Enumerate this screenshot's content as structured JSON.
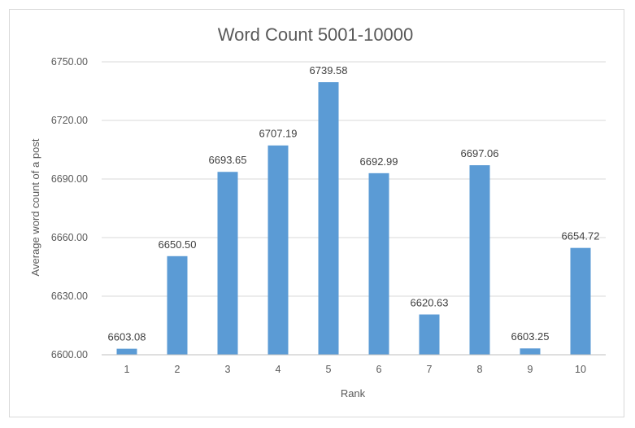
{
  "chart_data": {
    "type": "bar",
    "title": "Word Count 5001-10000",
    "xlabel": "Rank",
    "ylabel": "Average word count of a post",
    "categories": [
      "1",
      "2",
      "3",
      "4",
      "5",
      "6",
      "7",
      "8",
      "9",
      "10"
    ],
    "values": [
      6603.08,
      6650.5,
      6693.65,
      6707.19,
      6739.58,
      6692.99,
      6620.63,
      6697.06,
      6603.25,
      6654.72
    ],
    "data_labels": [
      "6603.08",
      "6650.50",
      "6693.65",
      "6707.19",
      "6739.58",
      "6692.99",
      "6620.63",
      "6697.06",
      "6603.25",
      "6654.72"
    ],
    "ylim": [
      6600,
      6750
    ],
    "yticks": [
      "6600.00",
      "6630.00",
      "6660.00",
      "6690.00",
      "6720.00",
      "6750.00"
    ],
    "ytick_values": [
      6600,
      6630,
      6660,
      6690,
      6720,
      6750
    ],
    "grid": true,
    "legend": "none",
    "bar_color": "#5b9bd5",
    "grid_color": "#d9d9d9"
  }
}
